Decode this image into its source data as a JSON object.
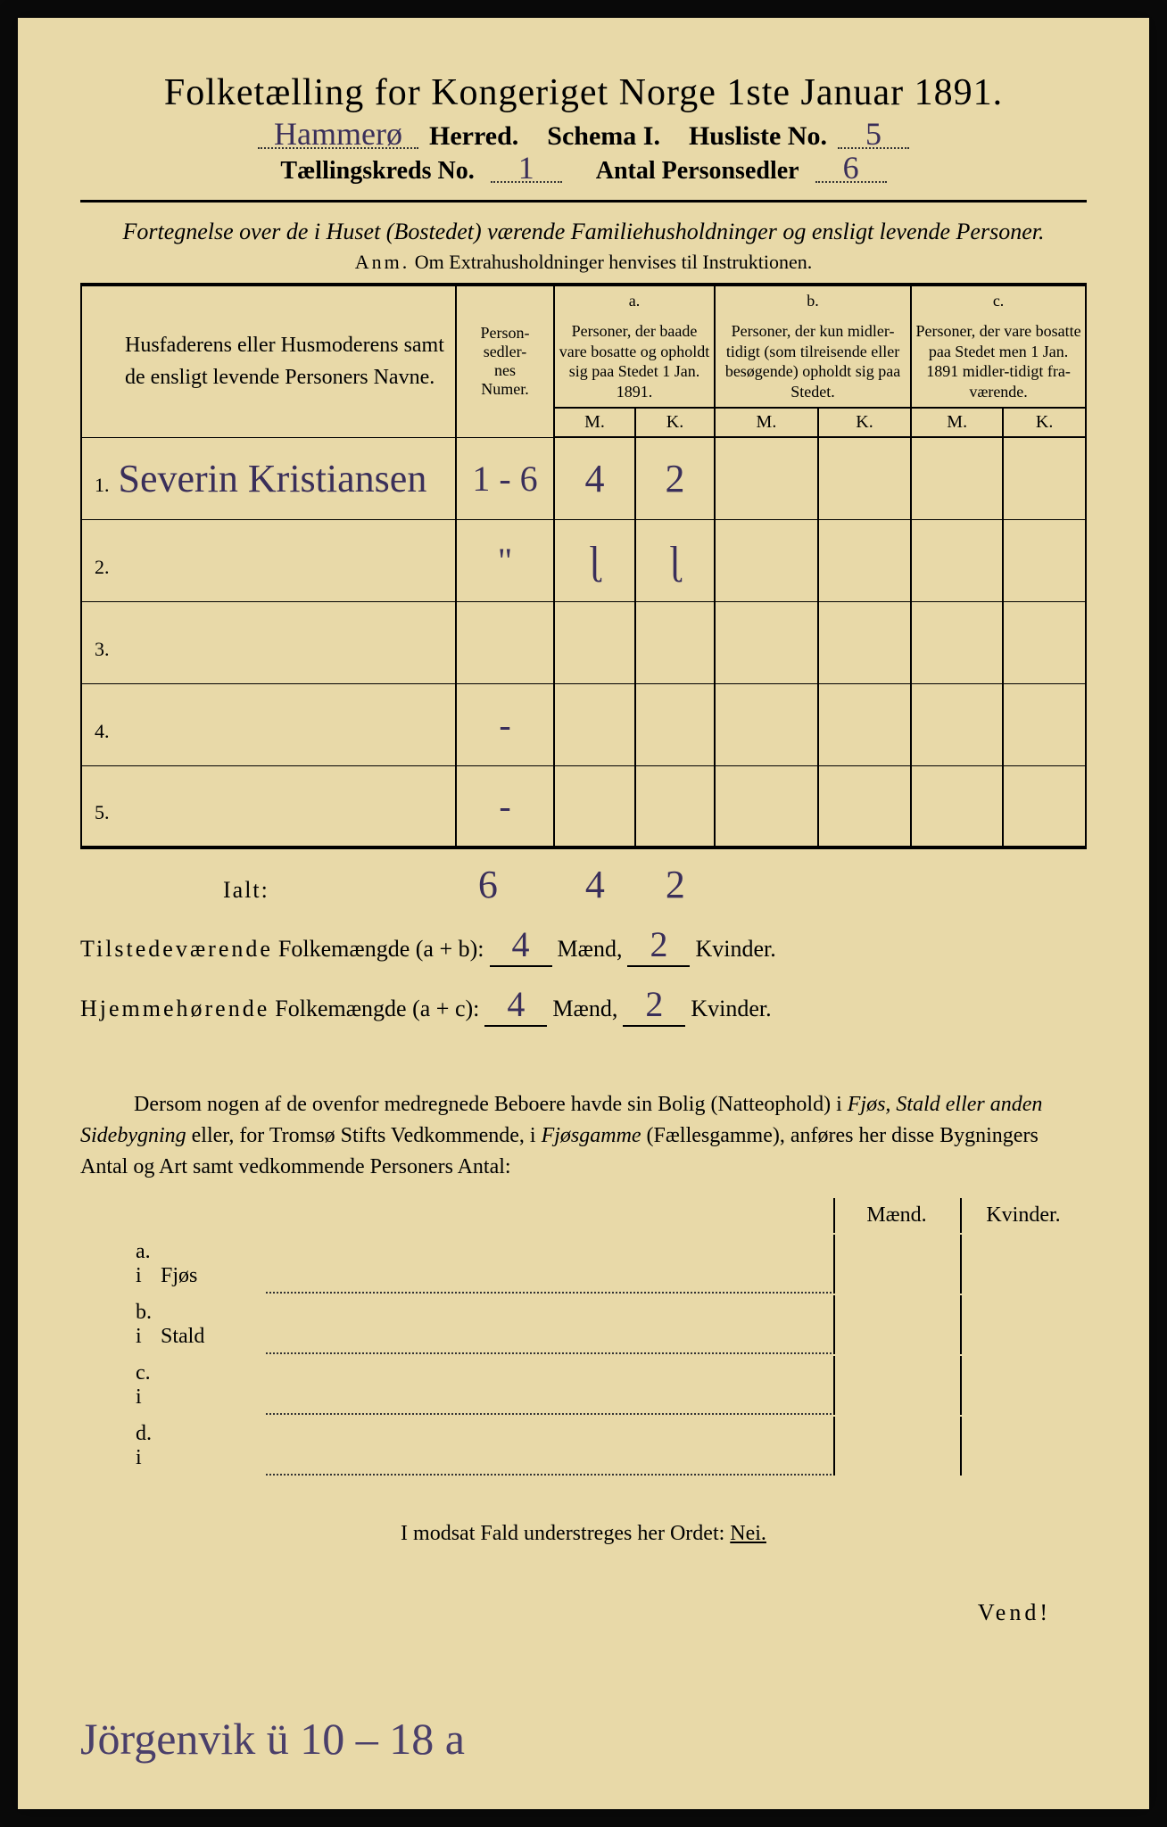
{
  "title": "Folketælling for Kongeriget Norge 1ste Januar 1891.",
  "header": {
    "herred_value": "Hammerø",
    "herred_label": "Herred.",
    "schema_label": "Schema I.",
    "husliste_label": "Husliste No.",
    "husliste_value": "5",
    "kreds_label": "Tællingskreds No.",
    "kreds_value": "1",
    "antal_label": "Antal Personsedler",
    "antal_value": "6"
  },
  "subtitle": "Fortegnelse over de i Huset (Bostedet) værende Familiehusholdninger og ensligt levende Personer.",
  "anm_label": "Anm.",
  "anm_text": "Om Extrahusholdninger henvises til Instruktionen.",
  "table": {
    "col_name": "Husfaderens eller Husmoderens samt de ensligt levende Personers Navne.",
    "col_num": "Person-\nsedler-\nnes\nNumer.",
    "col_a_top": "a.",
    "col_a": "Personer, der baade vare bosatte og opholdt sig paa Stedet 1 Jan. 1891.",
    "col_b_top": "b.",
    "col_b": "Personer, der kun midler-tidigt (som tilreisende eller besøgende) opholdt sig paa Stedet.",
    "col_c_top": "c.",
    "col_c": "Personer, der vare bosatte paa Stedet men 1 Jan. 1891 midler-tidigt fra-værende.",
    "m": "M.",
    "k": "K.",
    "rows": [
      {
        "n": "1.",
        "name": "Severin Kristiansen",
        "num": "1 - 6",
        "a_m": "4",
        "a_k": "2",
        "b_m": "",
        "b_k": "",
        "c_m": "",
        "c_k": ""
      },
      {
        "n": "2.",
        "name": "",
        "num": "\"",
        "a_m": "ɭ",
        "a_k": "ɭ",
        "b_m": "",
        "b_k": "",
        "c_m": "",
        "c_k": ""
      },
      {
        "n": "3.",
        "name": "",
        "num": "",
        "a_m": "",
        "a_k": "",
        "b_m": "",
        "b_k": "",
        "c_m": "",
        "c_k": ""
      },
      {
        "n": "4.",
        "name": "",
        "num": "-",
        "a_m": "",
        "a_k": "",
        "b_m": "",
        "b_k": "",
        "c_m": "",
        "c_k": ""
      },
      {
        "n": "5.",
        "name": "",
        "num": "-",
        "a_m": "",
        "a_k": "",
        "b_m": "",
        "b_k": "",
        "c_m": "",
        "c_k": ""
      }
    ]
  },
  "ialt": {
    "label": "Ialt:",
    "num": "6",
    "a_m": "4",
    "a_k": "2"
  },
  "summary": {
    "line1_label": "Tilstedeværende",
    "line1_mid": "Folkemængde (a + b):",
    "line1_m": "4",
    "line1_k": "2",
    "line2_label": "Hjemmehørende",
    "line2_mid": "Folkemængde (a + c):",
    "line2_m": "4",
    "line2_k": "2",
    "maend": "Mænd,",
    "kvinder": "Kvinder."
  },
  "para": "Dersom nogen af de ovenfor medregnede Beboere havde sin Bolig (Natteophold) i Fjøs, Stald eller anden Sidebygning eller, for Tromsø Stifts Vedkommende, i Fjøsgamme (Fællesgamme), anføres her disse Bygningers Antal og Art samt vedkommende Personers Antal:",
  "build": {
    "maend": "Mænd.",
    "kvinder": "Kvinder.",
    "rows": [
      {
        "lead": "a. i",
        "label": "Fjøs"
      },
      {
        "lead": "b. i",
        "label": "Stald"
      },
      {
        "lead": "c. i",
        "label": ""
      },
      {
        "lead": "d. i",
        "label": ""
      }
    ]
  },
  "nei_line_pre": "I modsat Fald understreges her Ordet: ",
  "nei": "Nei.",
  "vend": "Vend!",
  "footer_scrawl": "Jörgenvik ü 10 – 18 a"
}
